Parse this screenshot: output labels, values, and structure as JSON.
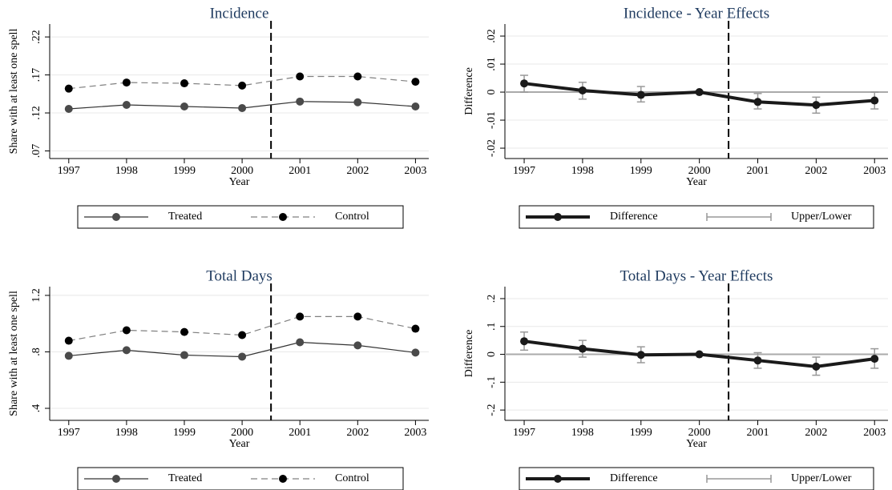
{
  "chart_data": [
    {
      "type": "line",
      "title": "Incidence",
      "x_label": "Year",
      "y_label": "Share with at least one spell",
      "x": [
        1997,
        1998,
        1999,
        2000,
        2001,
        2002,
        2003
      ],
      "xlim": [
        1996.67,
        2003.23
      ],
      "xticks": [
        1997,
        1998,
        1999,
        2000,
        2001,
        2002,
        2003
      ],
      "ylim": [
        0.06,
        0.237
      ],
      "yticks": [
        {
          "value": 0.07,
          "label": ".07"
        },
        {
          "value": 0.12,
          "label": ".12"
        },
        {
          "value": 0.17,
          "label": ".17"
        },
        {
          "value": 0.22,
          "label": ".22"
        }
      ],
      "grid": true,
      "vline": 2000.5,
      "series": [
        {
          "name": "Treated",
          "color": "#333333",
          "marker_color": "#4a4a4a",
          "dash": false,
          "values": [
            0.1253,
            0.1306,
            0.1285,
            0.1264,
            0.135,
            0.134,
            0.1285
          ]
        },
        {
          "name": "Control",
          "color": "#808080",
          "marker_color": "#000000",
          "dash": true,
          "values": [
            0.152,
            0.16,
            0.159,
            0.156,
            0.168,
            0.168,
            0.161
          ]
        }
      ]
    },
    {
      "type": "effects",
      "title": "Incidence - Year Effects",
      "x_label": "Year",
      "y_label": "Difference",
      "x": [
        1997,
        1998,
        1999,
        2000,
        2001,
        2002,
        2003
      ],
      "xlim": [
        1996.67,
        2003.23
      ],
      "xticks": [
        1997,
        1998,
        1999,
        2000,
        2001,
        2002,
        2003
      ],
      "ylim": [
        -0.0237,
        0.0243
      ],
      "yticks": [
        {
          "value": -0.02,
          "label": "-.02"
        },
        {
          "value": -0.01,
          "label": "-.01"
        },
        0,
        {
          "value": 0.01,
          "label": ".01"
        },
        {
          "value": 0.02,
          "label": ".02"
        }
      ],
      "grid": true,
      "vline": 2000.5,
      "hline": 0,
      "series": [
        {
          "name": "Difference",
          "color": "#1a1a1a",
          "values": [
            0.0031,
            0.0006,
            -0.001,
            0,
            -0.0035,
            -0.0046,
            -0.003
          ]
        },
        {
          "name": "Upper/Lower",
          "color": "#999999",
          "upper": [
            0.006,
            0.0035,
            0.002,
            0.0005,
            -0.0005,
            -0.0018,
            0
          ],
          "lower": [
            0,
            -0.0025,
            -0.0035,
            -0.0005,
            -0.006,
            -0.0075,
            -0.006
          ]
        }
      ]
    },
    {
      "type": "line",
      "title": "Total Days",
      "x_label": "Year",
      "y_label": "Share with at least one spell",
      "x": [
        1997,
        1998,
        1999,
        2000,
        2001,
        2002,
        2003
      ],
      "xlim": [
        1996.67,
        2003.23
      ],
      "xticks": [
        1997,
        1998,
        1999,
        2000,
        2001,
        2002,
        2003
      ],
      "ylim": [
        0.315,
        1.262
      ],
      "yticks": [
        {
          "value": 0.4,
          "label": ".4"
        },
        {
          "value": 0.8,
          "label": ".8"
        },
        {
          "value": 1.2,
          "label": "1.2"
        }
      ],
      "grid": true,
      "vline": 2000.5,
      "series": [
        {
          "name": "Treated",
          "color": "#333333",
          "marker_color": "#4a4a4a",
          "dash": false,
          "values": [
            0.772,
            0.812,
            0.777,
            0.766,
            0.868,
            0.846,
            0.795
          ]
        },
        {
          "name": "Control",
          "color": "#808080",
          "marker_color": "#000000",
          "dash": true,
          "values": [
            0.879,
            0.953,
            0.941,
            0.919,
            1.05,
            1.05,
            0.964
          ]
        }
      ]
    },
    {
      "type": "effects",
      "title": "Total Days - Year Effects",
      "x_label": "Year",
      "y_label": "Difference",
      "x": [
        1997,
        1998,
        1999,
        2000,
        2001,
        2002,
        2003
      ],
      "xlim": [
        1996.67,
        2003.23
      ],
      "xticks": [
        1997,
        1998,
        1999,
        2000,
        2001,
        2002,
        2003
      ],
      "ylim": [
        -0.237,
        0.243
      ],
      "yticks": [
        {
          "value": -0.2,
          "label": "-.2"
        },
        {
          "value": -0.1,
          "label": "-.1"
        },
        0,
        {
          "value": 0.1,
          "label": ".1"
        },
        {
          "value": 0.2,
          "label": ".2"
        }
      ],
      "grid": true,
      "vline": 2000.5,
      "hline": 0,
      "series": [
        {
          "name": "Difference",
          "color": "#1a1a1a",
          "values": [
            0.047,
            0.02,
            -0.002,
            0,
            -0.022,
            -0.044,
            -0.016
          ]
        },
        {
          "name": "Upper/Lower",
          "color": "#999999",
          "upper": [
            0.08,
            0.05,
            0.027,
            0.003,
            0.006,
            -0.01,
            0.02
          ],
          "lower": [
            0.015,
            -0.01,
            -0.03,
            -0.003,
            -0.05,
            -0.075,
            -0.05
          ]
        }
      ]
    }
  ]
}
